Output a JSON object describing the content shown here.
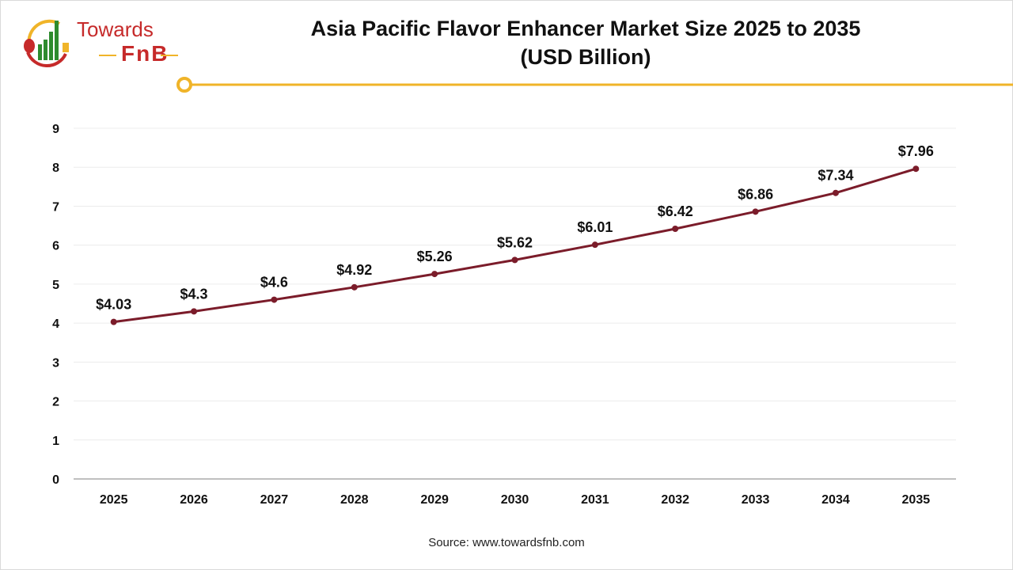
{
  "logo": {
    "line1": "Towards",
    "line2": "FnB"
  },
  "accent_color": "#f0b429",
  "source": "Source: www.towardsfnb.com",
  "chart_data": {
    "type": "line",
    "title": "Asia Pacific Flavor Enhancer Market Size 2025 to 2035",
    "subtitle": "(USD Billion)",
    "categories": [
      "2025",
      "2026",
      "2027",
      "2028",
      "2029",
      "2030",
      "2031",
      "2032",
      "2033",
      "2034",
      "2035"
    ],
    "values": [
      4.03,
      4.3,
      4.6,
      4.92,
      5.26,
      5.62,
      6.01,
      6.42,
      6.86,
      7.34,
      7.96
    ],
    "data_labels": [
      "$4.03",
      "$4.3",
      "$4.6",
      "$4.92",
      "$5.26",
      "$5.62",
      "$6.01",
      "$6.42",
      "$6.86",
      "$7.34",
      "$7.96"
    ],
    "yticks": [
      "0",
      "1",
      "2",
      "3",
      "4",
      "5",
      "6",
      "7",
      "8",
      "9"
    ],
    "ylim": [
      0,
      9
    ],
    "xlabel": "",
    "ylabel": "",
    "grid": true,
    "line_color": "#7b1c2a"
  }
}
